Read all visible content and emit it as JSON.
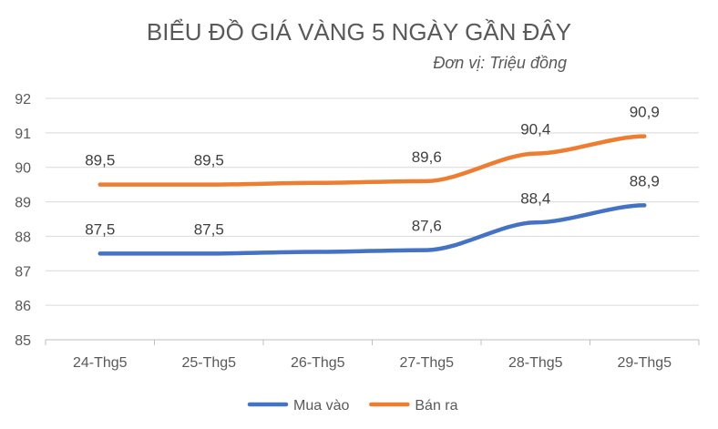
{
  "chart_data": {
    "type": "line",
    "title": "BIỂU ĐỒ GIÁ VÀNG 5 NGÀY GẦN ĐÂY",
    "subtitle": "Đơn vị: Triệu đồng",
    "categories": [
      "24-Thg5",
      "25-Thg5",
      "26-Thg5",
      "27-Thg5",
      "28-Thg5",
      "29-Thg5"
    ],
    "ylim": [
      85,
      92
    ],
    "yticks": [
      "85",
      "86",
      "87",
      "88",
      "89",
      "90",
      "91",
      "92"
    ],
    "grid": true,
    "legend_position": "bottom",
    "series": [
      {
        "name": "Mua vào",
        "color": "#4472C4",
        "values": [
          87.5,
          87.5,
          87.55,
          87.6,
          88.4,
          88.9
        ],
        "labels": [
          "87,5",
          "87,5",
          null,
          "87,6",
          "88,4",
          "88,9"
        ]
      },
      {
        "name": "Bán ra",
        "color": "#ED7D31",
        "values": [
          89.5,
          89.5,
          89.55,
          89.6,
          90.4,
          90.9
        ],
        "labels": [
          "89,5",
          "89,5",
          null,
          "89,6",
          "90,4",
          "90,9"
        ]
      }
    ]
  }
}
